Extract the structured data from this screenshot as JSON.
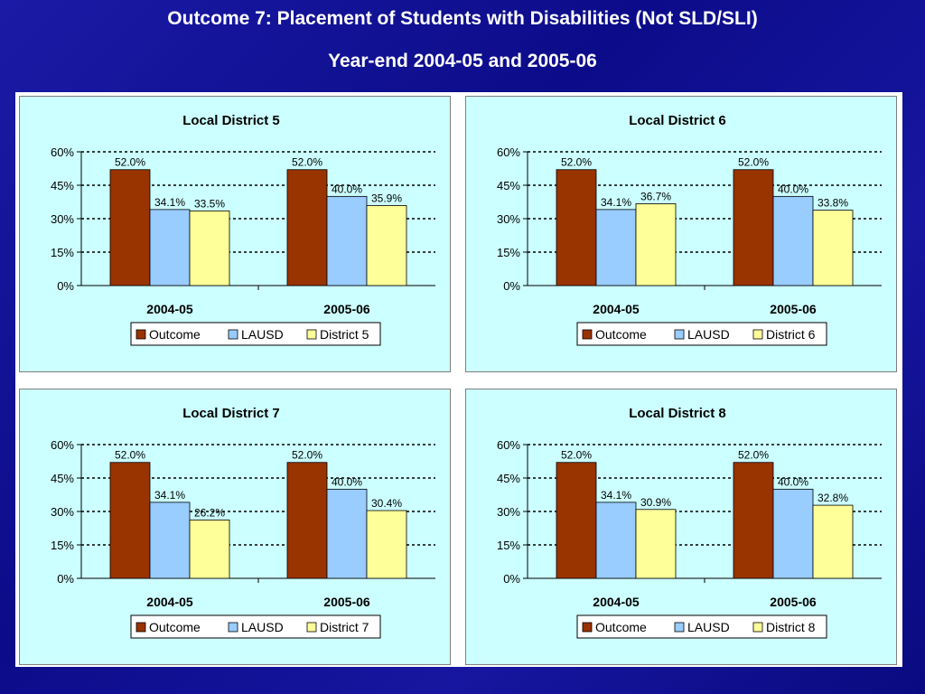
{
  "slide": {
    "title": "Outcome 7: Placement of Students with Disabilities (Not SLD/SLI)",
    "subtitle": "Year-end 2004-05 and 2005-06"
  },
  "colors": {
    "outcome": "#993300",
    "lausd": "#99ccff",
    "district": "#ffff99",
    "panel_bg": "#ccffff"
  },
  "chart_data": [
    {
      "type": "bar",
      "title": "Local District 5",
      "categories": [
        "2004-05",
        "2005-06"
      ],
      "series": [
        {
          "name": "Outcome",
          "values": [
            52.0,
            52.0
          ],
          "labels": [
            "52.0%",
            "52.0%"
          ]
        },
        {
          "name": "LAUSD",
          "values": [
            34.1,
            40.0
          ],
          "labels": [
            "34.1%",
            "40.0%"
          ]
        },
        {
          "name": "District 5",
          "values": [
            33.5,
            35.9
          ],
          "labels": [
            "33.5%",
            "35.9%"
          ]
        }
      ],
      "ylim": [
        0,
        60
      ],
      "yticks": [
        "0%",
        "15%",
        "30%",
        "45%",
        "60%"
      ],
      "legend": "bottom",
      "grid": "dashed"
    },
    {
      "type": "bar",
      "title": "Local District 6",
      "categories": [
        "2004-05",
        "2005-06"
      ],
      "series": [
        {
          "name": "Outcome",
          "values": [
            52.0,
            52.0
          ],
          "labels": [
            "52.0%",
            "52.0%"
          ]
        },
        {
          "name": "LAUSD",
          "values": [
            34.1,
            40.0
          ],
          "labels": [
            "34.1%",
            "40.0%"
          ]
        },
        {
          "name": "District 6",
          "values": [
            36.7,
            33.8
          ],
          "labels": [
            "36.7%",
            "33.8%"
          ]
        }
      ],
      "ylim": [
        0,
        60
      ],
      "yticks": [
        "0%",
        "15%",
        "30%",
        "45%",
        "60%"
      ],
      "legend": "bottom",
      "grid": "dashed"
    },
    {
      "type": "bar",
      "title": "Local District 7",
      "categories": [
        "2004-05",
        "2005-06"
      ],
      "series": [
        {
          "name": "Outcome",
          "values": [
            52.0,
            52.0
          ],
          "labels": [
            "52.0%",
            "52.0%"
          ]
        },
        {
          "name": "LAUSD",
          "values": [
            34.1,
            40.0
          ],
          "labels": [
            "34.1%",
            "40.0%"
          ]
        },
        {
          "name": "District 7",
          "values": [
            26.2,
            30.4
          ],
          "labels": [
            "26.2%",
            "30.4%"
          ]
        }
      ],
      "ylim": [
        0,
        60
      ],
      "yticks": [
        "0%",
        "15%",
        "30%",
        "45%",
        "60%"
      ],
      "legend": "bottom",
      "grid": "dashed"
    },
    {
      "type": "bar",
      "title": "Local District 8",
      "categories": [
        "2004-05",
        "2005-06"
      ],
      "series": [
        {
          "name": "Outcome",
          "values": [
            52.0,
            52.0
          ],
          "labels": [
            "52.0%",
            "52.0%"
          ]
        },
        {
          "name": "LAUSD",
          "values": [
            34.1,
            40.0
          ],
          "labels": [
            "34.1%",
            "40.0%"
          ]
        },
        {
          "name": "District 8",
          "values": [
            30.9,
            32.8
          ],
          "labels": [
            "30.9%",
            "32.8%"
          ]
        }
      ],
      "ylim": [
        0,
        60
      ],
      "yticks": [
        "0%",
        "15%",
        "30%",
        "45%",
        "60%"
      ],
      "legend": "bottom",
      "grid": "dashed"
    }
  ]
}
